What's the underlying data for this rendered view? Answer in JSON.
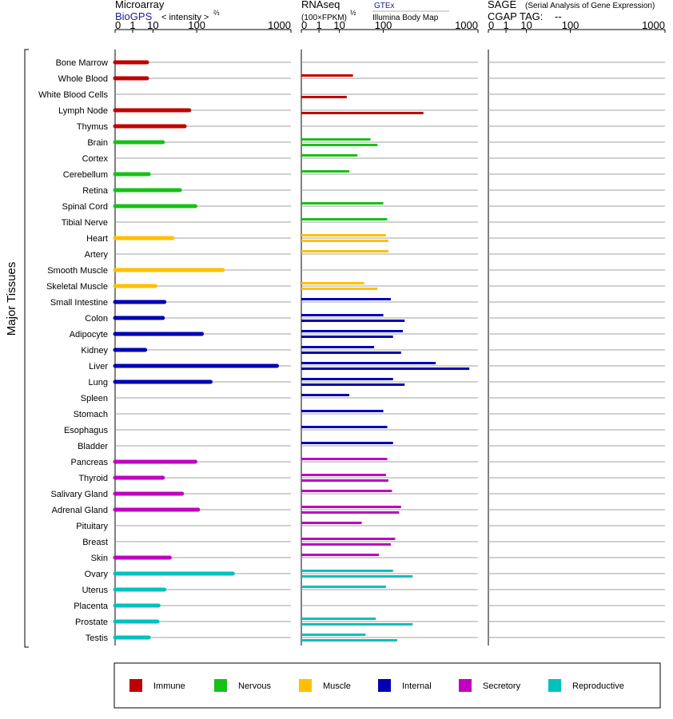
{
  "header": {
    "microarray": {
      "title": "Microarray",
      "source": "BioGPS",
      "unit": "< intensity >",
      "unit_exp": "⅔"
    },
    "rnaseq": {
      "title": "RNAseq",
      "unit": "(100×FPKM)",
      "unit_exp": "½",
      "source1": "GTEx",
      "source2": "Illumina Body Map"
    },
    "sage": {
      "title": "SAGE",
      "subtitle": "(Serial Analysis of Gene Expression)",
      "tag_label": "CGAP TAG:",
      "tag_value": "--"
    }
  },
  "ticks": [
    "0",
    "1",
    "10",
    "100",
    "1000"
  ],
  "y_axis_label": "Major Tissues",
  "colors": {
    "Immune": "#c00000",
    "Nervous": "#18c018",
    "Muscle": "#ffc000",
    "Internal": "#0000b4",
    "Secretory": "#c000c0",
    "Reproductive": "#00c0c0"
  },
  "legend": [
    "Immune",
    "Nervous",
    "Muscle",
    "Internal",
    "Secretory",
    "Reproductive"
  ],
  "chart_data": {
    "type": "bar",
    "scale": "power",
    "scale_note": "x axis values are shown on transformed scale; ticks at 0, 1, 10, 100, 1000",
    "xlim": [
      0,
      1000
    ],
    "tissues": [
      {
        "name": "Bone Marrow",
        "system": "Immune",
        "microarray": 6,
        "gtex": null,
        "illumina": null,
        "sage": null
      },
      {
        "name": "Whole Blood",
        "system": "Immune",
        "microarray": 6,
        "gtex": 25,
        "illumina": null,
        "sage": null
      },
      {
        "name": "White Blood Cells",
        "system": "Immune",
        "microarray": null,
        "gtex": null,
        "illumina": 17,
        "sage": null
      },
      {
        "name": "Lymph Node",
        "system": "Immune",
        "microarray": 75,
        "gtex": null,
        "illumina": 330,
        "sage": null
      },
      {
        "name": "Thymus",
        "system": "Immune",
        "microarray": 62,
        "gtex": null,
        "illumina": null,
        "sage": null
      },
      {
        "name": "Brain",
        "system": "Nervous",
        "microarray": 20,
        "gtex": 60,
        "illumina": 80,
        "sage": null
      },
      {
        "name": "Cortex",
        "system": "Nervous",
        "microarray": null,
        "gtex": 32,
        "illumina": null,
        "sage": null
      },
      {
        "name": "Cerebellum",
        "system": "Nervous",
        "microarray": 7,
        "gtex": 20,
        "illumina": null,
        "sage": null
      },
      {
        "name": "Retina",
        "system": "Nervous",
        "microarray": 50,
        "gtex": null,
        "illumina": null,
        "sage": null
      },
      {
        "name": "Spinal Cord",
        "system": "Nervous",
        "microarray": 95,
        "gtex": 100,
        "illumina": null,
        "sage": null
      },
      {
        "name": "Tibial Nerve",
        "system": "Nervous",
        "microarray": null,
        "gtex": 115,
        "illumina": null,
        "sage": null
      },
      {
        "name": "Heart",
        "system": "Muscle",
        "microarray": 35,
        "gtex": 110,
        "illumina": 120,
        "sage": null
      },
      {
        "name": "Artery",
        "system": "Muscle",
        "microarray": null,
        "gtex": 120,
        "illumina": null,
        "sage": null
      },
      {
        "name": "Smooth Muscle",
        "system": "Muscle",
        "microarray": 230,
        "gtex": null,
        "illumina": null,
        "sage": null
      },
      {
        "name": "Skeletal Muscle",
        "system": "Muscle",
        "microarray": 12,
        "gtex": 45,
        "illumina": 80,
        "sage": null
      },
      {
        "name": "Small Intestine",
        "system": "Internal",
        "microarray": 22,
        "gtex": 130,
        "illumina": null,
        "sage": null
      },
      {
        "name": "Colon",
        "system": "Internal",
        "microarray": 20,
        "gtex": 100,
        "illumina": 200,
        "sage": null
      },
      {
        "name": "Adipocyte",
        "system": "Internal",
        "microarray": 120,
        "gtex": 190,
        "illumina": 140,
        "sage": null
      },
      {
        "name": "Kidney",
        "system": "Internal",
        "microarray": 5,
        "gtex": 70,
        "illumina": 180,
        "sage": null
      },
      {
        "name": "Liver",
        "system": "Internal",
        "microarray": 780,
        "gtex": 440,
        "illumina": 860,
        "sage": null
      },
      {
        "name": "Lung",
        "system": "Internal",
        "microarray": 160,
        "gtex": 140,
        "illumina": 200,
        "sage": null
      },
      {
        "name": "Spleen",
        "system": "Internal",
        "microarray": null,
        "gtex": 20,
        "illumina": null,
        "sage": null
      },
      {
        "name": "Stomach",
        "system": "Internal",
        "microarray": null,
        "gtex": 100,
        "illumina": null,
        "sage": null
      },
      {
        "name": "Esophagus",
        "system": "Internal",
        "microarray": null,
        "gtex": 115,
        "illumina": null,
        "sage": null
      },
      {
        "name": "Bladder",
        "system": "Internal",
        "microarray": null,
        "gtex": 140,
        "illumina": null,
        "sage": null
      },
      {
        "name": "Pancreas",
        "system": "Secretory",
        "microarray": 95,
        "gtex": 115,
        "illumina": null,
        "sage": null
      },
      {
        "name": "Thyroid",
        "system": "Secretory",
        "microarray": 20,
        "gtex": 110,
        "illumina": 120,
        "sage": null
      },
      {
        "name": "Salivary Gland",
        "system": "Secretory",
        "microarray": 55,
        "gtex": 135,
        "illumina": null,
        "sage": null
      },
      {
        "name": "Adrenal Gland",
        "system": "Secretory",
        "microarray": 105,
        "gtex": 180,
        "illumina": 170,
        "sage": null
      },
      {
        "name": "Pituitary",
        "system": "Secretory",
        "microarray": null,
        "gtex": 40,
        "illumina": null,
        "sage": null
      },
      {
        "name": "Breast",
        "system": "Secretory",
        "microarray": null,
        "gtex": 150,
        "illumina": 130,
        "sage": null
      },
      {
        "name": "Skin",
        "system": "Secretory",
        "microarray": 30,
        "gtex": 85,
        "illumina": null,
        "sage": null
      },
      {
        "name": "Ovary",
        "system": "Reproductive",
        "microarray": 300,
        "gtex": 140,
        "illumina": 250,
        "sage": null
      },
      {
        "name": "Uterus",
        "system": "Reproductive",
        "microarray": 22,
        "gtex": 110,
        "illumina": null,
        "sage": null
      },
      {
        "name": "Placenta",
        "system": "Reproductive",
        "microarray": 15,
        "gtex": null,
        "illumina": null,
        "sage": null
      },
      {
        "name": "Prostate",
        "system": "Reproductive",
        "microarray": 14,
        "gtex": 75,
        "illumina": 250,
        "sage": null
      },
      {
        "name": "Testis",
        "system": "Reproductive",
        "microarray": 7,
        "gtex": 48,
        "illumina": 160,
        "sage": null
      }
    ]
  }
}
